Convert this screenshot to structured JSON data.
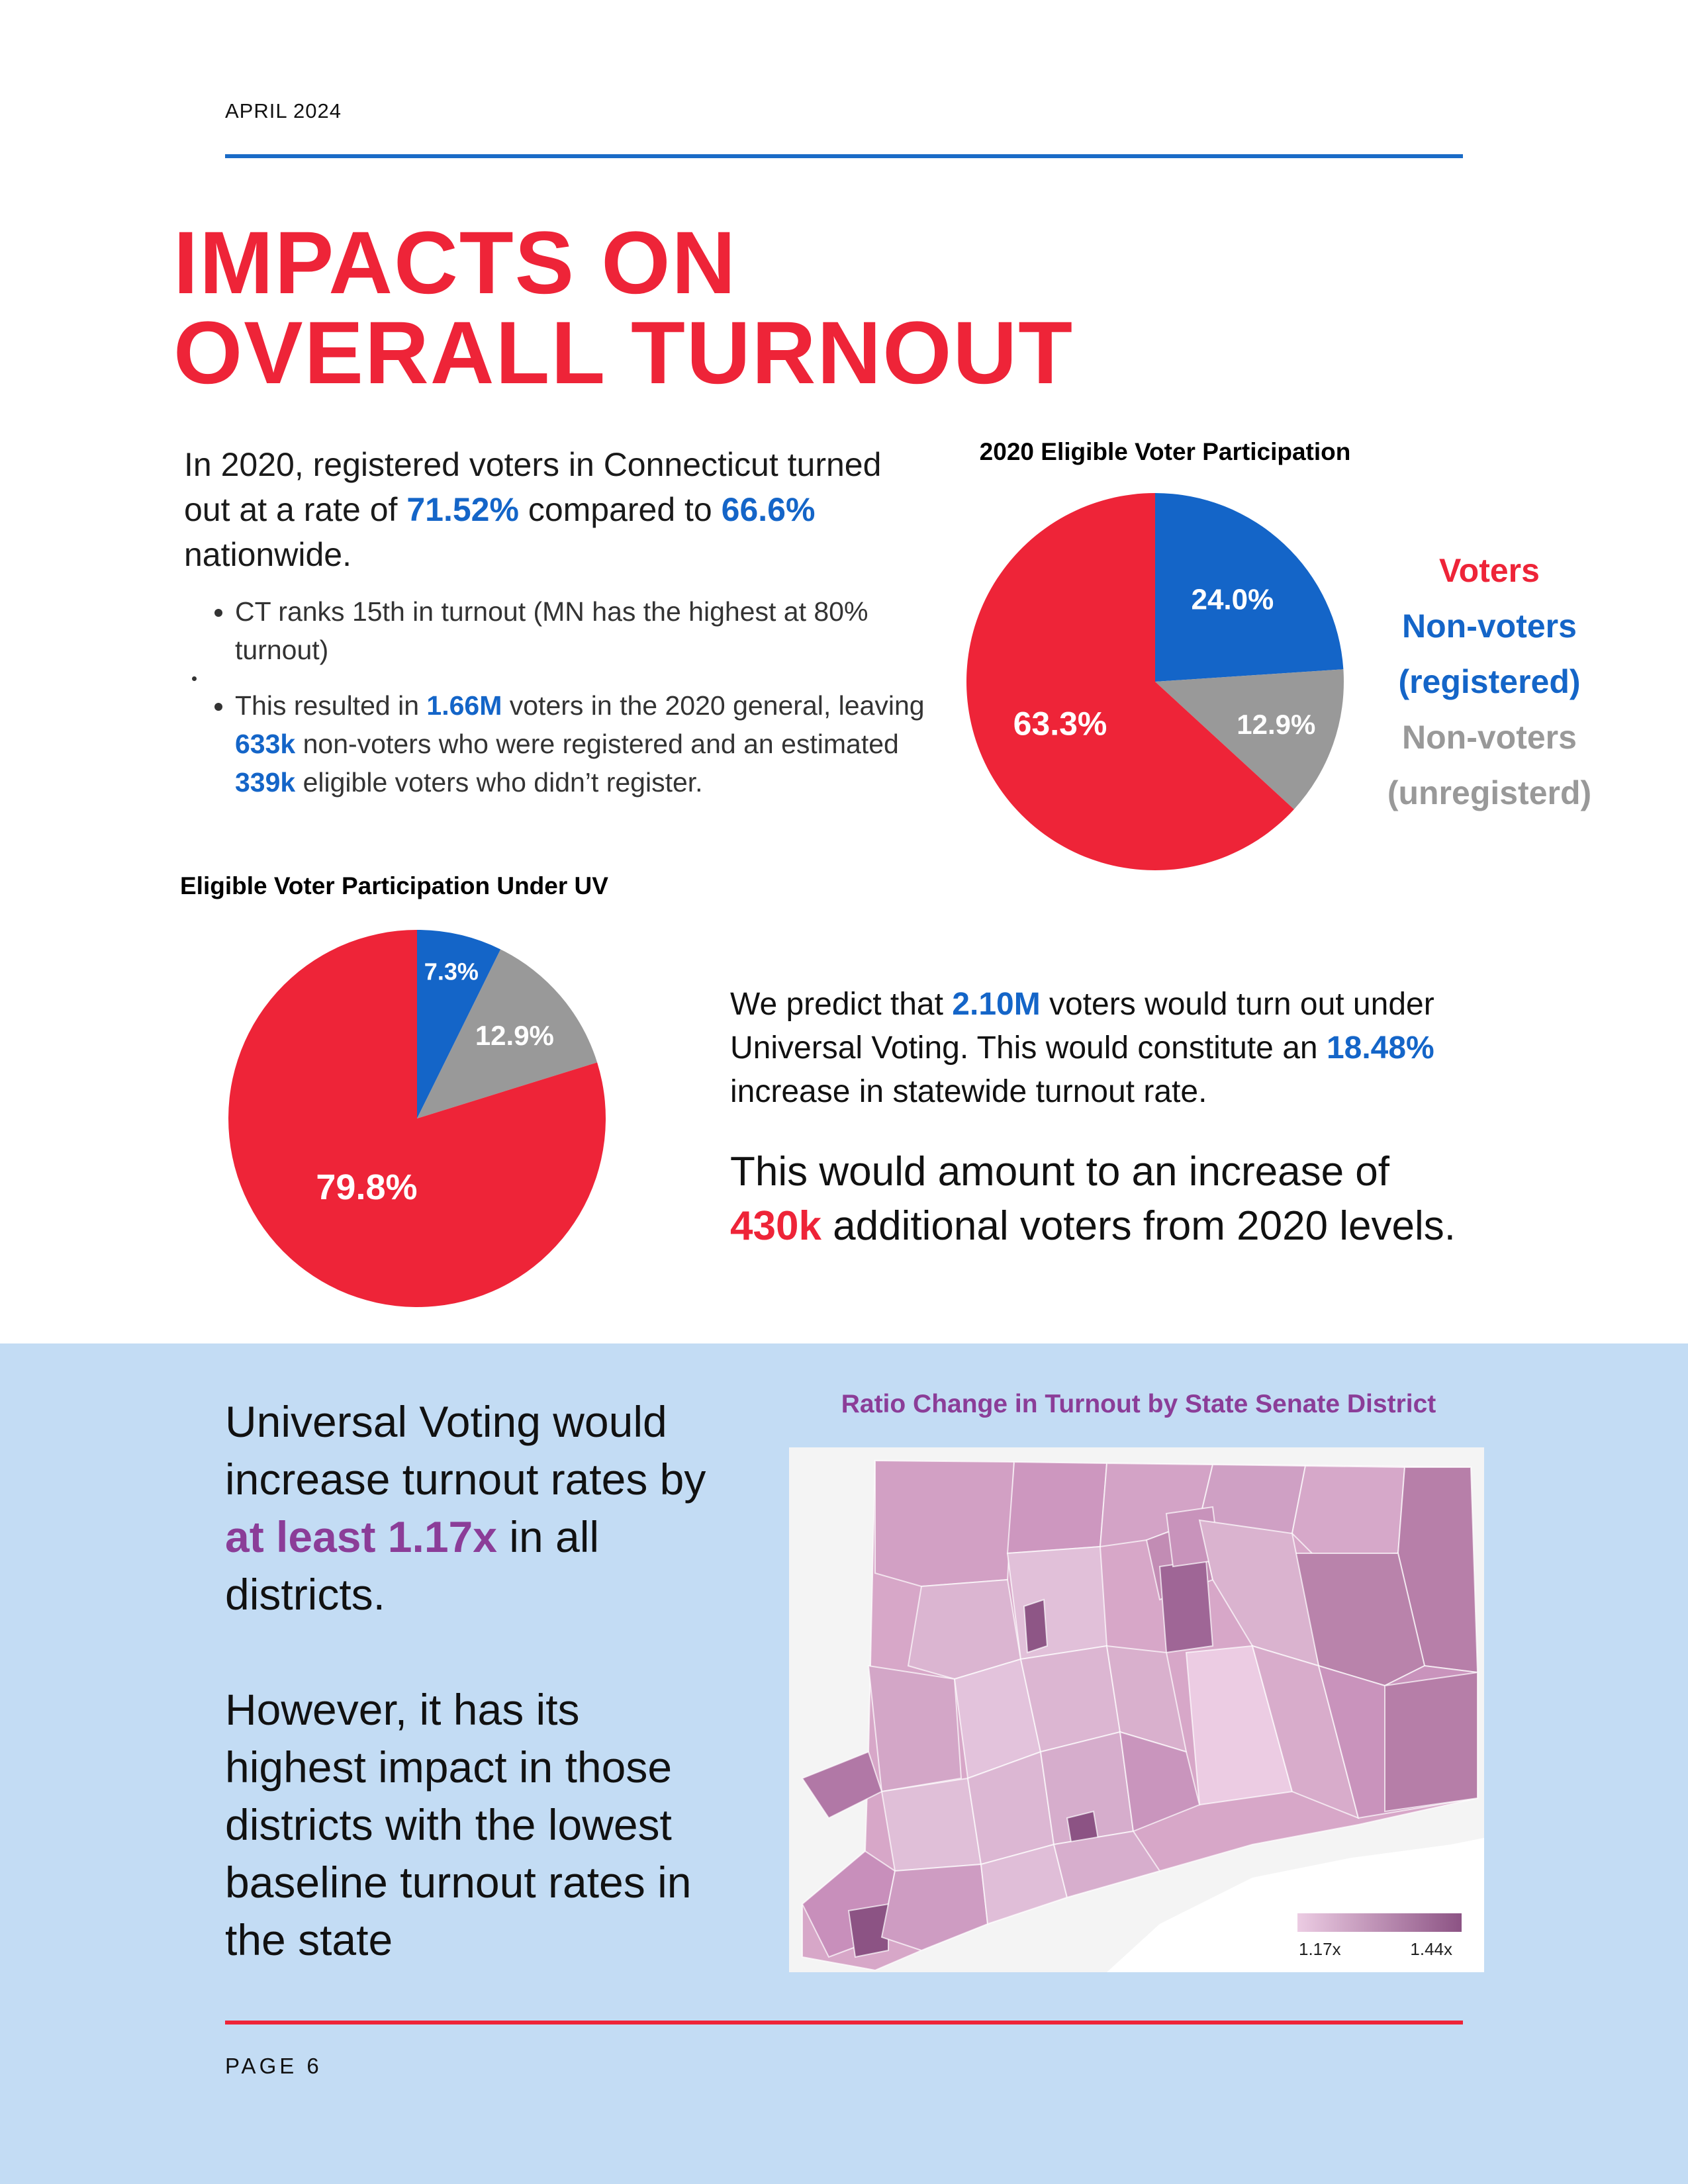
{
  "header": {
    "date": "APRIL 2024"
  },
  "title": {
    "line1": "IMPACTS ON",
    "line2": "OVERALL TURNOUT"
  },
  "intro": {
    "p1": "In 2020, registered voters in Connecticut turned out at a rate of ",
    "ct_rate": "71.52%",
    "p2": " compared to ",
    "national_rate": "66.6%",
    "p3": " nationwide."
  },
  "bullets": {
    "b1": "CT ranks 15th in turnout (MN has the highest at 80% turnout)",
    "b2_a": "This resulted in ",
    "b2_voters": "1.66M",
    "b2_b": " voters in the 2020 general, leaving ",
    "b2_nonvoters": "633k",
    "b2_c": " non-voters who were registered and an estimated ",
    "b2_unreg": "339k",
    "b2_d": " eligible voters who didn’t register."
  },
  "legend": {
    "voters": "Voters",
    "nonvoters_reg": "Non-voters (registered)",
    "nonvoters_unreg": "Non-voters (unregisterd)"
  },
  "prediction": {
    "a": "We predict that ",
    "voters": "2.10M",
    "b": " voters would turn out under Universal Voting. This would constitute an ",
    "pct": "18.48%",
    "c": " increase in statewide turnout rate."
  },
  "amount": {
    "a": "This would amount to an increase of ",
    "value": "430k",
    "b": " additional voters from 2020 levels."
  },
  "uv": {
    "a": "Universal Voting would increase turnout rates by ",
    "emph": "at least 1.17x",
    "b": " in all districts.",
    "c": "However, it has its highest impact in those districts with the lowest baseline turnout rates in the state"
  },
  "map": {
    "title": "Ratio Change in Turnout by State Senate District",
    "scale_min": "1.17x",
    "scale_max": "1.44x"
  },
  "footer": {
    "page": "PAGE 6"
  },
  "colors": {
    "voters": "#ee2438",
    "nonvoters_reg": "#1465c8",
    "nonvoters_unreg": "#999999"
  },
  "chart_data": [
    {
      "type": "pie",
      "title": "2020 Eligible Voter Participation",
      "categories": [
        "Voters",
        "Non-voters (registered)",
        "Non-voters (unregisterd)"
      ],
      "values": [
        63.3,
        24.0,
        12.9
      ],
      "labels": [
        "63.3%",
        "24.0%",
        "12.9%"
      ]
    },
    {
      "type": "pie",
      "title": "Eligible Voter Participation Under UV",
      "categories": [
        "Voters",
        "Non-voters (registered)",
        "Non-voters (unregisterd)"
      ],
      "values": [
        79.8,
        7.3,
        12.9
      ],
      "labels": [
        "79.8%",
        "7.3%",
        "12.9%"
      ]
    }
  ]
}
